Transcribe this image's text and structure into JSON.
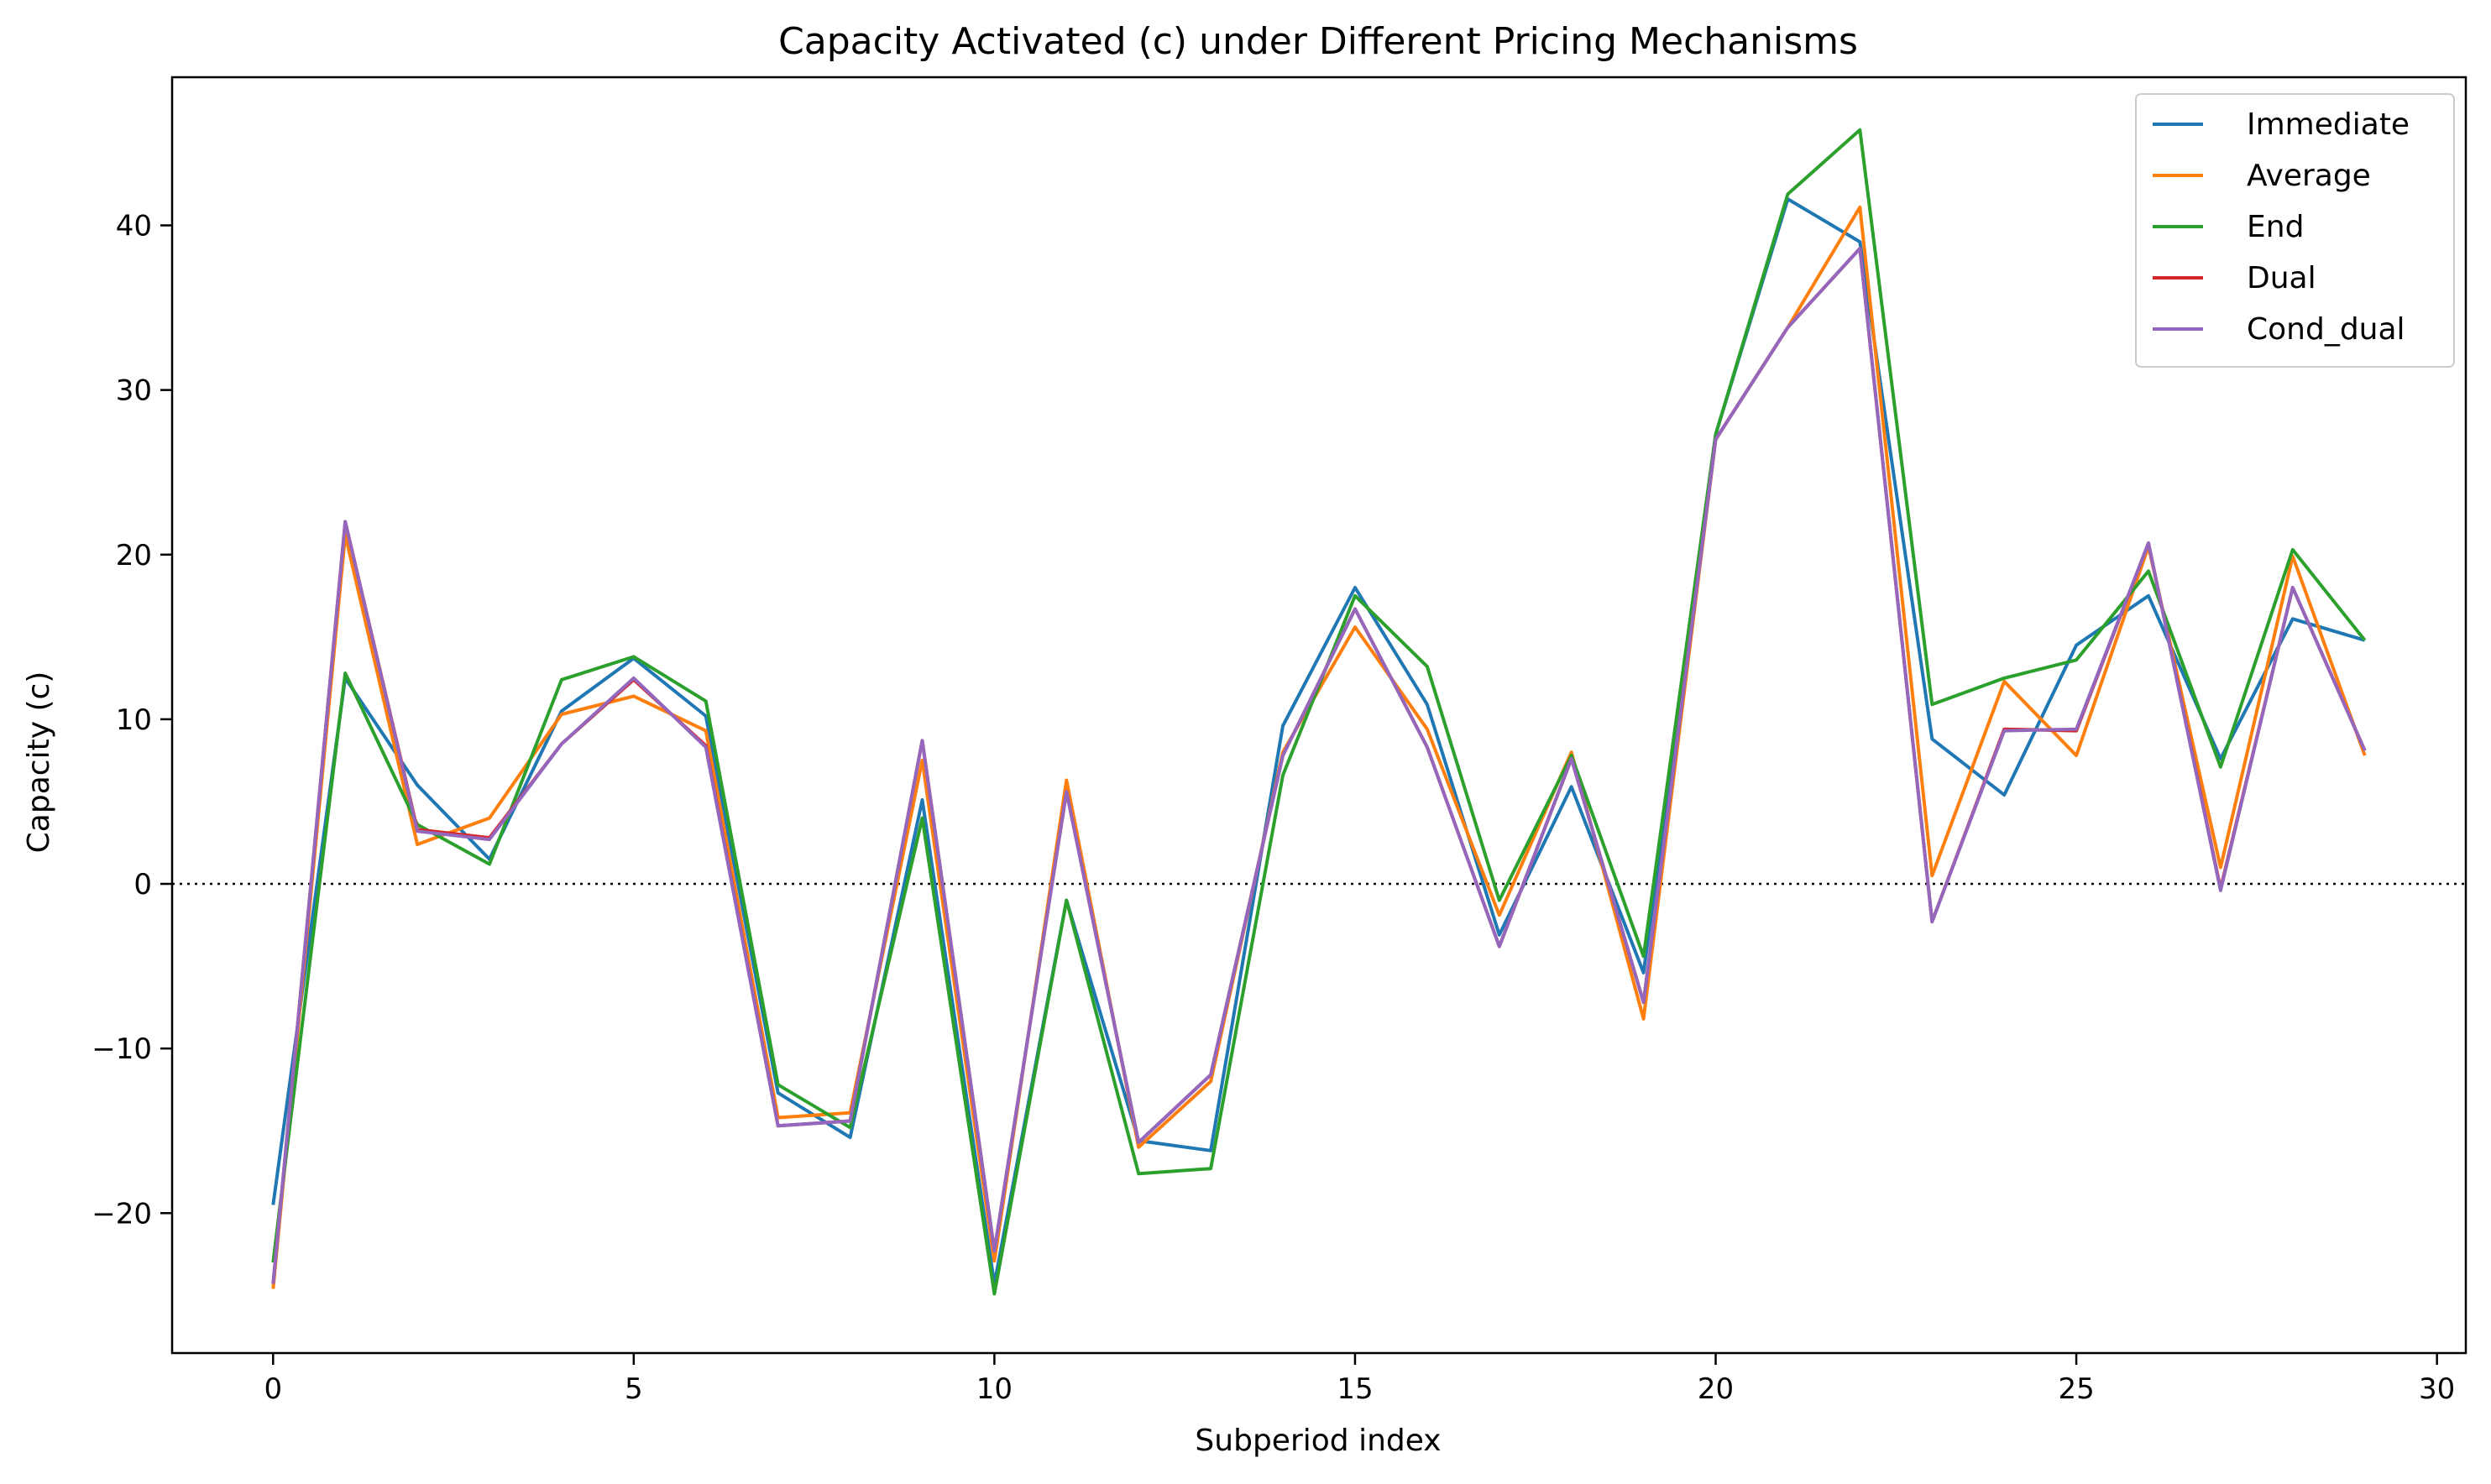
{
  "chart_data": {
    "type": "line",
    "title": "Capacity Activated (c) under Different Pricing Mechanisms",
    "xlabel": "Subperiod index",
    "ylabel": "Capacity (c)",
    "xlim": [
      -1.4,
      30.4
    ],
    "ylim": [
      -28.5,
      49
    ],
    "xticks": [
      0,
      5,
      10,
      15,
      20,
      25,
      30
    ],
    "yticks": [
      -20,
      -10,
      0,
      10,
      20,
      30,
      40
    ],
    "grid": false,
    "legend_position": "top-right",
    "reference_line": {
      "y": 0,
      "style": "dotted"
    },
    "x": [
      0,
      1,
      2,
      3,
      4,
      5,
      6,
      7,
      8,
      9,
      10,
      11,
      12,
      13,
      14,
      15,
      16,
      17,
      18,
      19,
      20,
      21,
      22,
      23,
      24,
      25,
      26,
      27,
      28,
      29
    ],
    "series": [
      {
        "name": "Immediate",
        "color": "#1f77b4",
        "values": [
          -19.5,
          12.5,
          6.0,
          1.5,
          10.5,
          13.7,
          10.2,
          -12.7,
          -15.4,
          5.1,
          -24.3,
          -1.0,
          -15.6,
          -16.2,
          9.6,
          18.0,
          10.9,
          -3.1,
          5.9,
          -5.4,
          27.3,
          41.6,
          39.0,
          8.8,
          5.4,
          14.5,
          17.5,
          7.6,
          16.1,
          14.8
        ]
      },
      {
        "name": "Average",
        "color": "#ff7f0e",
        "values": [
          -24.6,
          21.2,
          2.4,
          4.0,
          10.3,
          11.4,
          9.3,
          -14.2,
          -13.9,
          7.5,
          -22.9,
          6.3,
          -16.0,
          -12.0,
          8.0,
          15.6,
          9.4,
          -1.9,
          8.0,
          -8.2,
          27.0,
          33.8,
          41.1,
          0.5,
          12.3,
          7.8,
          20.5,
          1.0,
          19.9,
          7.8
        ]
      },
      {
        "name": "End",
        "color": "#2ca02c",
        "values": [
          -23.0,
          12.8,
          3.6,
          1.2,
          12.4,
          13.8,
          11.1,
          -12.2,
          -14.8,
          4.0,
          -24.9,
          -1.0,
          -17.6,
          -17.3,
          6.6,
          17.5,
          13.2,
          -1.0,
          7.8,
          -4.4,
          27.3,
          41.9,
          45.8,
          10.9,
          12.5,
          13.6,
          19.0,
          7.1,
          20.3,
          14.8
        ]
      },
      {
        "name": "Dual",
        "color": "#d62728",
        "values": [
          -24.3,
          22.0,
          3.3,
          2.8,
          8.5,
          12.4,
          8.4,
          -14.7,
          -14.4,
          8.7,
          -22.3,
          5.6,
          -15.7,
          -11.6,
          7.8,
          16.7,
          8.3,
          -3.8,
          7.6,
          -7.2,
          27.0,
          33.8,
          38.6,
          -2.3,
          9.4,
          9.3,
          20.7,
          -0.3,
          18.0,
          8.1
        ]
      },
      {
        "name": "Cond_dual",
        "color": "#9467bd",
        "values": [
          -24.3,
          22.0,
          3.2,
          2.7,
          8.5,
          12.5,
          8.3,
          -14.7,
          -14.4,
          8.7,
          -22.3,
          5.6,
          -15.7,
          -11.6,
          7.8,
          16.7,
          8.3,
          -3.8,
          7.6,
          -7.2,
          27.0,
          33.8,
          38.6,
          -2.3,
          9.3,
          9.4,
          20.7,
          -0.4,
          18.0,
          8.1
        ]
      }
    ]
  }
}
